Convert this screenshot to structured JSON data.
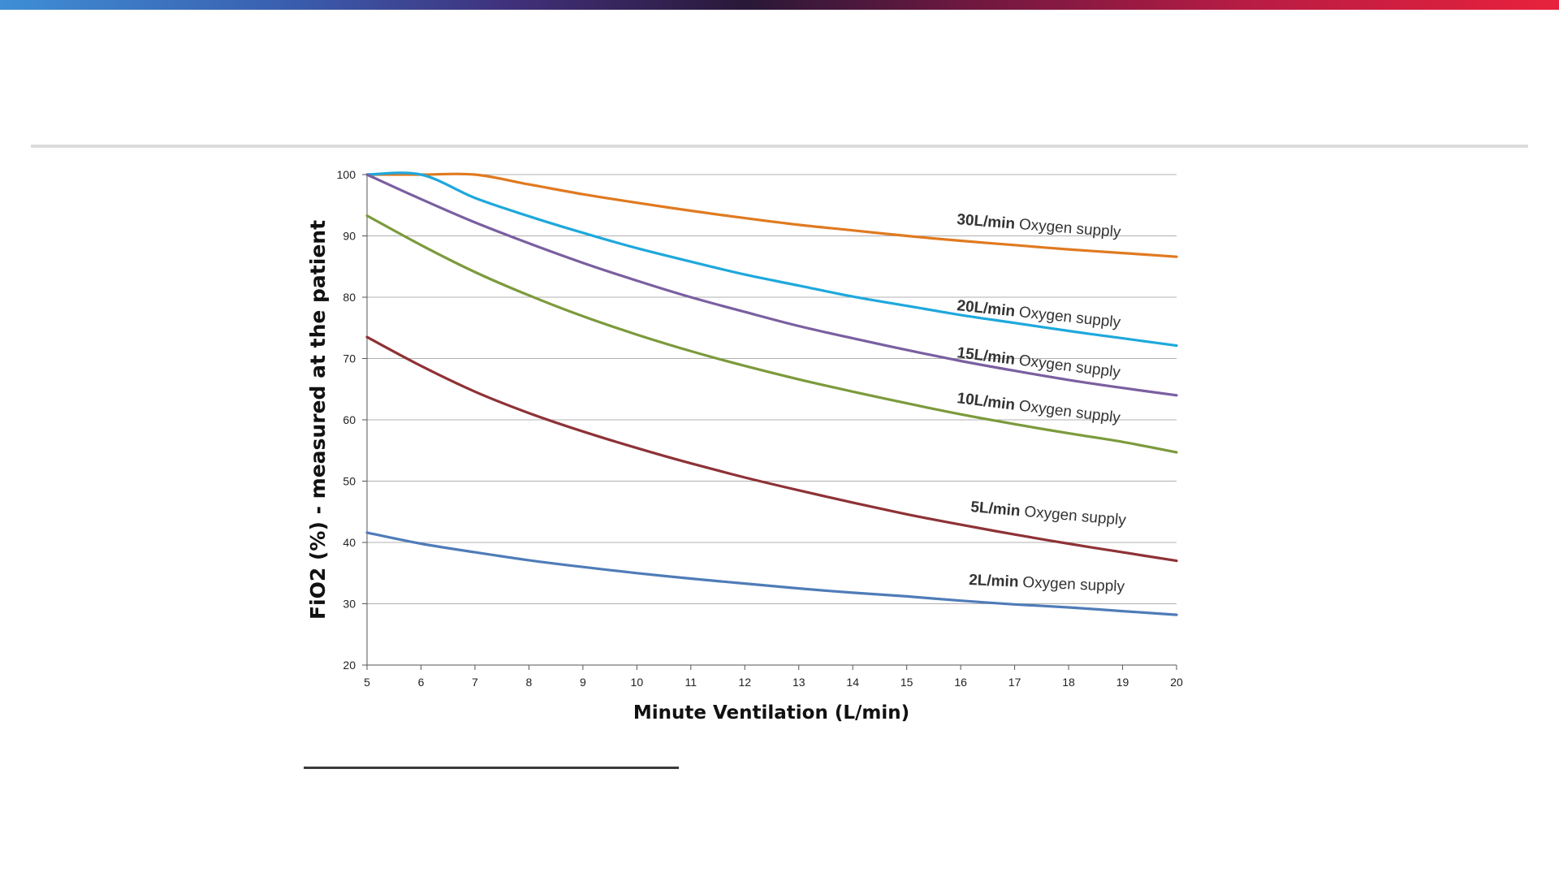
{
  "colors": {
    "header_gradient": [
      "#3f8fd6",
      "#3a5fb0",
      "#40307a",
      "#2a1838",
      "#6e1840",
      "#b81c44",
      "#e8223c"
    ],
    "rule": "#dcdcdc",
    "footnote_rule": "#3a3a3a",
    "grid": "#b0b0b0"
  },
  "chart_data": {
    "type": "line",
    "xlabel": "Minute Ventilation (L/min)",
    "ylabel": "FiO2 (%) - measured at the patient",
    "xlim": [
      5,
      20
    ],
    "ylim": [
      20,
      100
    ],
    "x_ticks": [
      5,
      6,
      7,
      8,
      9,
      10,
      11,
      12,
      13,
      14,
      15,
      16,
      17,
      18,
      19,
      20
    ],
    "y_ticks": [
      20,
      30,
      40,
      50,
      60,
      70,
      80,
      90,
      100
    ],
    "grid": "horizontal",
    "x": [
      5,
      6,
      7,
      8,
      9,
      10,
      11,
      12,
      13,
      14,
      15,
      16,
      17,
      18,
      19,
      20
    ],
    "series": [
      {
        "name": "30L/min Oxygen supply",
        "rate": "30L/min",
        "suffix": "Oxygen supply",
        "color": "#e07a20",
        "values": [
          100,
          100,
          100,
          98.4,
          96.8,
          95.4,
          94.1,
          92.9,
          91.8,
          90.9,
          90.0,
          89.2,
          88.5,
          87.8,
          87.2,
          86.6
        ]
      },
      {
        "name": "20L/min Oxygen supply",
        "rate": "20L/min",
        "suffix": "Oxygen supply",
        "color": "#1ea8dc",
        "values": [
          100,
          100,
          96.2,
          93.2,
          90.5,
          88.0,
          85.8,
          83.7,
          81.9,
          80.1,
          78.6,
          77.1,
          75.8,
          74.5,
          73.3,
          72.1
        ]
      },
      {
        "name": "15L/min Oxygen supply",
        "rate": "15L/min",
        "suffix": "Oxygen supply",
        "color": "#7a5fa0",
        "values": [
          100,
          96.0,
          92.2,
          88.8,
          85.6,
          82.7,
          80.0,
          77.6,
          75.3,
          73.3,
          71.4,
          69.6,
          68.0,
          66.5,
          65.2,
          64.0
        ]
      },
      {
        "name": "10L/min Oxygen supply",
        "rate": "10L/min",
        "suffix": "Oxygen supply",
        "color": "#7c9a3c",
        "values": [
          93.3,
          88.5,
          84.1,
          80.3,
          76.9,
          73.9,
          71.2,
          68.8,
          66.6,
          64.6,
          62.7,
          60.9,
          59.3,
          57.8,
          56.4,
          54.7
        ]
      },
      {
        "name": "5L/min Oxygen supply",
        "rate": "5L/min",
        "suffix": "Oxygen supply",
        "color": "#8e3236",
        "values": [
          73.5,
          68.8,
          64.6,
          61.1,
          58.1,
          55.4,
          52.9,
          50.6,
          48.5,
          46.5,
          44.6,
          42.9,
          41.3,
          39.8,
          38.4,
          37.0
        ]
      },
      {
        "name": "2L/min Oxygen supply",
        "rate": "2L/min",
        "suffix": "Oxygen supply",
        "color": "#4f7cb8",
        "values": [
          41.6,
          39.8,
          38.4,
          37.1,
          36.0,
          35.0,
          34.1,
          33.3,
          32.5,
          31.8,
          31.2,
          30.5,
          29.9,
          29.4,
          28.8,
          28.2
        ]
      }
    ]
  }
}
